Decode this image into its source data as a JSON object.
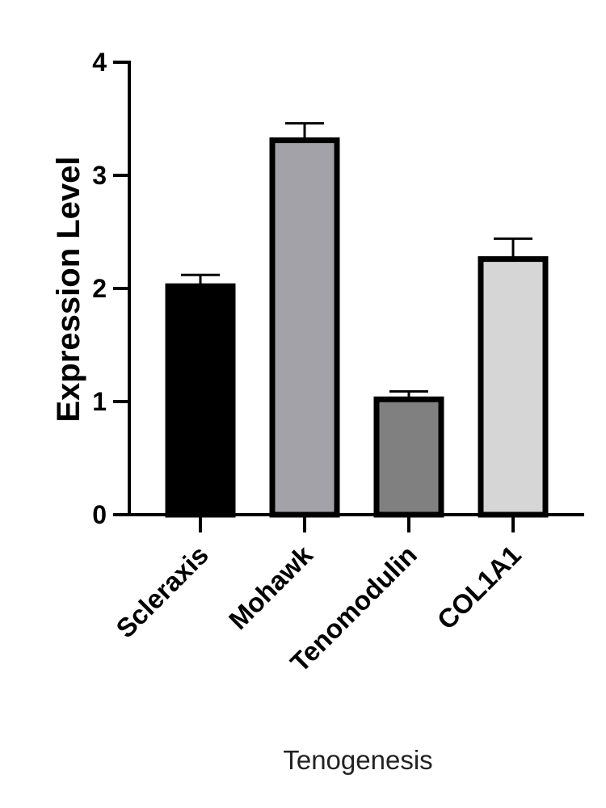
{
  "chart_data": {
    "type": "bar",
    "categories": [
      "Scleraxis",
      "Mohawk",
      "Tenomodulin",
      "COL1A1"
    ],
    "values": [
      2.02,
      3.31,
      1.02,
      2.26
    ],
    "errors": [
      0.1,
      0.15,
      0.07,
      0.18
    ],
    "colors": [
      "#000000",
      "#a3a2a8",
      "#808080",
      "#d6d6d6"
    ],
    "xlabel": "Tenogenesis",
    "ylabel": "Expression Level",
    "ylim": [
      0,
      4
    ],
    "yticks": [
      "0",
      "1",
      "2",
      "3",
      "4"
    ],
    "grid": false,
    "legend": false
  }
}
